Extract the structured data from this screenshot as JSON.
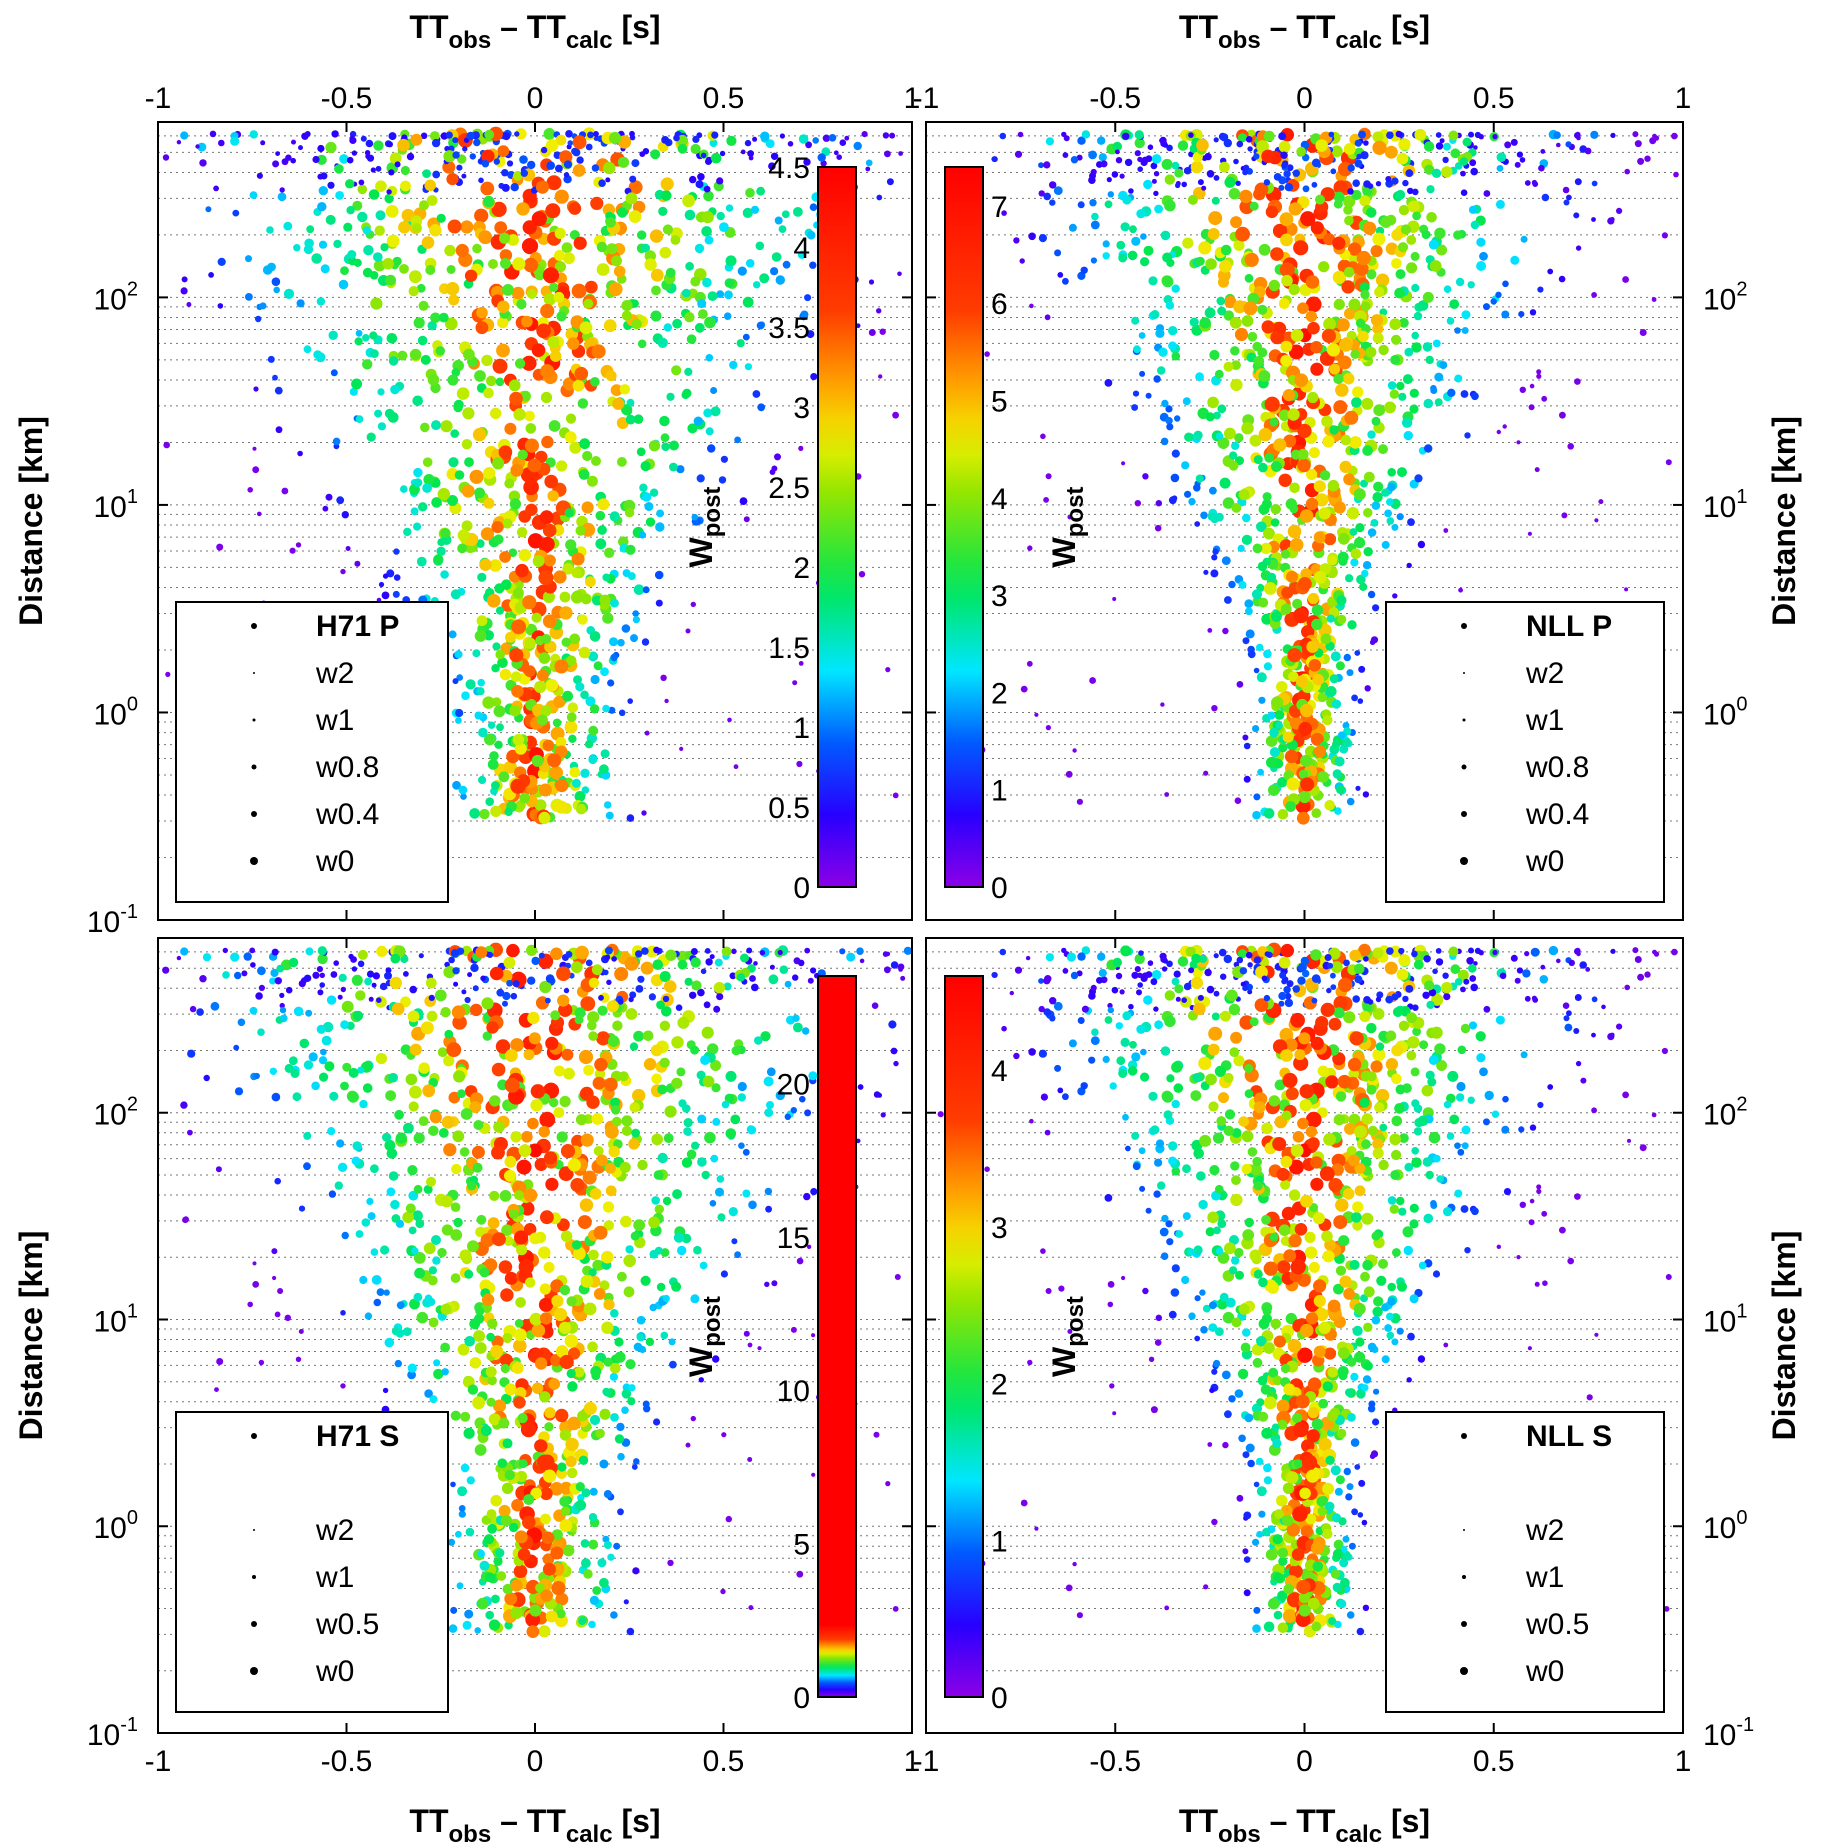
{
  "chart_data": [
    {
      "type": "scatter",
      "panel": "H71 P",
      "xlabel": {
        "main": "TT",
        "sub1": "obs",
        "mid": " – TT",
        "sub2": "calc",
        "end": " [s]"
      },
      "ylabel": "Distance [km]",
      "xlim": [
        -1,
        1
      ],
      "ylim": [
        0.1,
        700
      ],
      "yscale": "log",
      "x_ticks": [
        "-1",
        "-0.5",
        "0",
        "0.5",
        "1"
      ],
      "y_ticks": [
        {
          "base": "10",
          "exp": "-1"
        },
        {
          "base": "10",
          "exp": "0"
        },
        {
          "base": "10",
          "exp": "1"
        },
        {
          "base": "10",
          "exp": "2"
        }
      ],
      "grid": "dotted horizontal",
      "colorbar": {
        "label": "W",
        "label_sub": "post",
        "min": 0,
        "max": 4.5,
        "ticks": [
          "0",
          "0.5",
          "1",
          "1.5",
          "2",
          "2.5",
          "3",
          "3.5",
          "4",
          "4.5"
        ],
        "colormap": "hsv-rainbow"
      },
      "legend": {
        "title": "H71 P",
        "items": [
          "w2",
          "w1",
          "w0.8",
          "w0.4",
          "w0"
        ],
        "placement": "bottom-left"
      }
    },
    {
      "type": "scatter",
      "panel": "NLL P",
      "xlabel": {
        "main": "TT",
        "sub1": "obs",
        "mid": " – TT",
        "sub2": "calc",
        "end": " [s]"
      },
      "ylabel": "Distance [km]",
      "xlim": [
        -1,
        1
      ],
      "ylim": [
        0.1,
        700
      ],
      "yscale": "log",
      "x_ticks": [
        "-1",
        "-0.5",
        "0",
        "0.5",
        "1"
      ],
      "y_ticks": [
        {
          "base": "10",
          "exp": "0"
        },
        {
          "base": "10",
          "exp": "1"
        },
        {
          "base": "10",
          "exp": "2"
        }
      ],
      "grid": "dotted horizontal",
      "colorbar": {
        "label": "W",
        "label_sub": "post",
        "min": 0,
        "max": 7.4,
        "ticks": [
          "0",
          "1",
          "2",
          "3",
          "4",
          "5",
          "6",
          "7"
        ],
        "colormap": "hsv-rainbow"
      },
      "legend": {
        "title": "NLL P",
        "items": [
          "w2",
          "w1",
          "w0.8",
          "w0.4",
          "w0"
        ],
        "placement": "bottom-right"
      }
    },
    {
      "type": "scatter",
      "panel": "H71 S",
      "xlabel": {
        "main": "TT",
        "sub1": "obs",
        "mid": " – TT",
        "sub2": "calc",
        "end": " [s]"
      },
      "ylabel": "Distance [km]",
      "xlim": [
        -1,
        1
      ],
      "ylim": [
        0.1,
        700
      ],
      "yscale": "log",
      "x_ticks": [
        "-1",
        "-0.5",
        "0",
        "0.5",
        "1"
      ],
      "y_ticks": [
        {
          "base": "10",
          "exp": "-1"
        },
        {
          "base": "10",
          "exp": "0"
        },
        {
          "base": "10",
          "exp": "1"
        },
        {
          "base": "10",
          "exp": "2"
        }
      ],
      "grid": "dotted horizontal",
      "colorbar": {
        "label": "W",
        "label_sub": "post",
        "min": 0,
        "max": 23.5,
        "ticks": [
          "0",
          "5",
          "10",
          "15",
          "20"
        ],
        "colormap": "hsv-rainbow-compressed"
      },
      "legend": {
        "title": "H71 S",
        "items": [
          "w2",
          "w1",
          "w0.5",
          "w0"
        ],
        "placement": "bottom-left"
      }
    },
    {
      "type": "scatter",
      "panel": "NLL S",
      "xlabel": {
        "main": "TT",
        "sub1": "obs",
        "mid": " – TT",
        "sub2": "calc",
        "end": " [s]"
      },
      "ylabel": "Distance [km]",
      "xlim": [
        -1,
        1
      ],
      "ylim": [
        0.1,
        700
      ],
      "yscale": "log",
      "x_ticks": [
        "-1",
        "-0.5",
        "0",
        "0.5",
        "1"
      ],
      "y_ticks": [
        {
          "base": "10",
          "exp": "-1"
        },
        {
          "base": "10",
          "exp": "0"
        },
        {
          "base": "10",
          "exp": "1"
        },
        {
          "base": "10",
          "exp": "2"
        }
      ],
      "grid": "dotted horizontal",
      "colorbar": {
        "label": "W",
        "label_sub": "post",
        "min": 0,
        "max": 4.6,
        "ticks": [
          "0",
          "1",
          "2",
          "3",
          "4"
        ],
        "colormap": "hsv-rainbow"
      },
      "legend": {
        "title": "NLL S",
        "items": [
          "w2",
          "w1",
          "w0.5",
          "w0"
        ],
        "placement": "bottom-right"
      }
    }
  ]
}
